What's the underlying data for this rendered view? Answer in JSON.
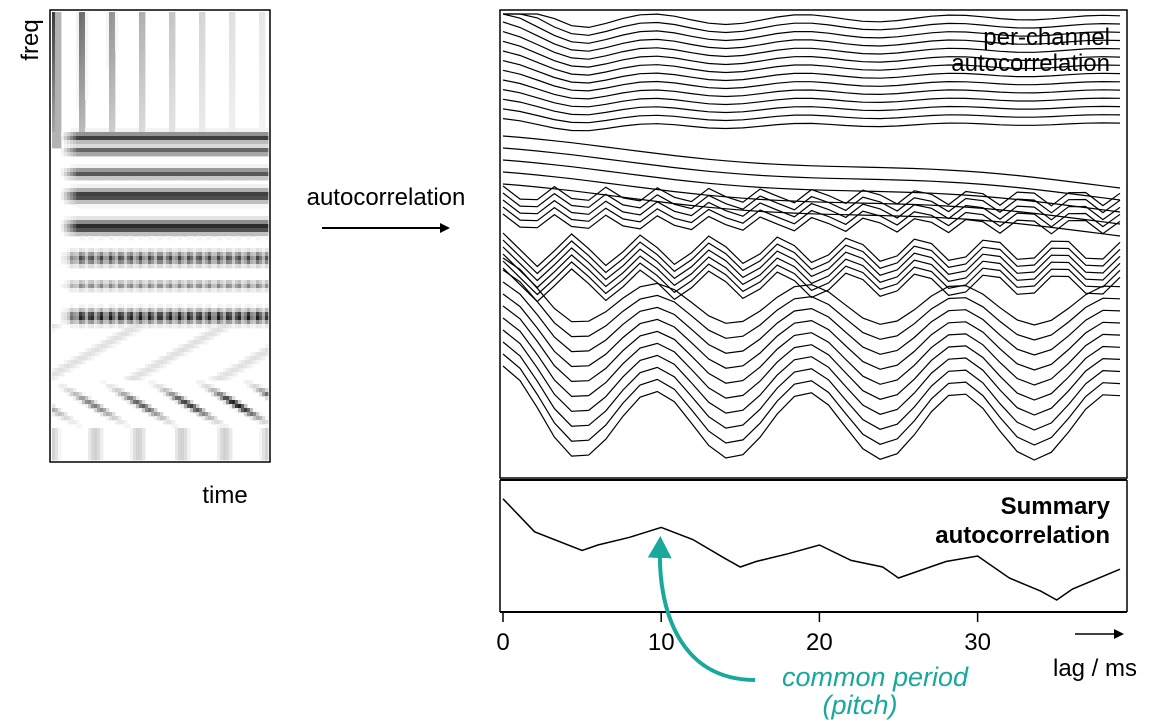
{
  "spectrogram": {
    "y_label": "freq",
    "x_label": "time"
  },
  "arrow_label": "autocorrelation",
  "per_channel": {
    "label_line1": "per-channel",
    "label_line2": "autocorrelation"
  },
  "summary": {
    "label_line1": "Summary",
    "label_line2": "autocorrelation"
  },
  "axis": {
    "ticks": [
      "0",
      "10",
      "20",
      "30"
    ],
    "label": "lag / ms"
  },
  "annotation": {
    "line1": "common period",
    "line2": "(pitch)",
    "color": "#19a89c"
  },
  "chart_data": {
    "type": "line",
    "x_unit": "ms",
    "xlim": [
      0,
      39
    ],
    "x_ticks": [
      0,
      10,
      20,
      30
    ],
    "xlabel": "lag / ms",
    "summary_series": {
      "x": [
        0,
        2,
        5,
        6,
        8,
        10,
        12,
        14,
        15,
        16,
        18,
        20,
        22,
        24,
        25,
        26,
        28,
        30,
        32,
        34,
        35,
        36,
        38,
        39
      ],
      "y": [
        0.92,
        0.62,
        0.45,
        0.5,
        0.57,
        0.66,
        0.55,
        0.38,
        0.3,
        0.35,
        0.42,
        0.5,
        0.36,
        0.3,
        0.2,
        0.25,
        0.35,
        0.4,
        0.2,
        0.08,
        0.0,
        0.1,
        0.22,
        0.28
      ]
    }
  }
}
